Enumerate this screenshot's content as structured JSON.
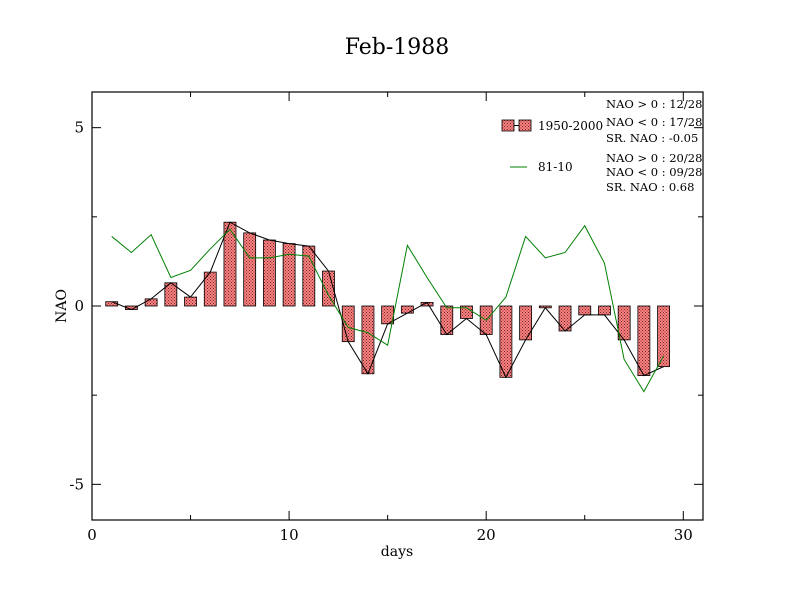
{
  "chart_data": {
    "type": "bar",
    "title": "Feb-1988",
    "xlabel": "days",
    "ylabel": "NAO",
    "xlim": [
      0,
      31
    ],
    "ylim": [
      -6,
      6
    ],
    "xticks": [
      0,
      10,
      20,
      30
    ],
    "xtick_labels": [
      "0",
      "10",
      "20",
      "30"
    ],
    "yticks": [
      -5,
      0,
      5
    ],
    "ytick_labels": [
      "-5",
      "0",
      "5"
    ],
    "grid": false,
    "legend_position": "top-right",
    "x": [
      1,
      2,
      3,
      4,
      5,
      6,
      7,
      8,
      9,
      10,
      11,
      12,
      13,
      14,
      15,
      16,
      17,
      18,
      19,
      20,
      21,
      22,
      23,
      24,
      25,
      26,
      27,
      28,
      29
    ],
    "series": [
      {
        "name": "1950-2000",
        "kind": "bar-with-line",
        "color": "#ff8080",
        "line_color": "#000000",
        "values": [
          0.12,
          -0.1,
          0.2,
          0.65,
          0.25,
          0.95,
          2.35,
          2.05,
          1.85,
          1.75,
          1.68,
          0.98,
          -1.0,
          -1.9,
          -0.5,
          -0.2,
          0.1,
          -0.8,
          -0.35,
          -0.8,
          -2.0,
          -0.95,
          -0.05,
          -0.7,
          -0.25,
          -0.25,
          -0.95,
          -1.95,
          -1.7
        ]
      },
      {
        "name": "81-10",
        "kind": "line",
        "color": "#008000",
        "values": [
          1.95,
          1.5,
          2.0,
          0.8,
          1.0,
          1.6,
          2.15,
          1.35,
          1.35,
          1.45,
          1.4,
          0.3,
          -0.6,
          -0.75,
          -1.1,
          1.7,
          0.8,
          -0.05,
          -0.05,
          -0.4,
          0.25,
          1.95,
          1.35,
          1.5,
          2.25,
          1.2,
          -1.5,
          -2.4,
          -1.4
        ]
      }
    ],
    "annotations": [
      [
        "NAO > 0 :  12/28",
        "NAO < 0 :  17/28",
        "SR. NAO :  -0.05"
      ],
      [
        "NAO > 0 :  20/28",
        "NAO < 0 :  09/28",
        "SR. NAO :   0.68"
      ]
    ]
  }
}
